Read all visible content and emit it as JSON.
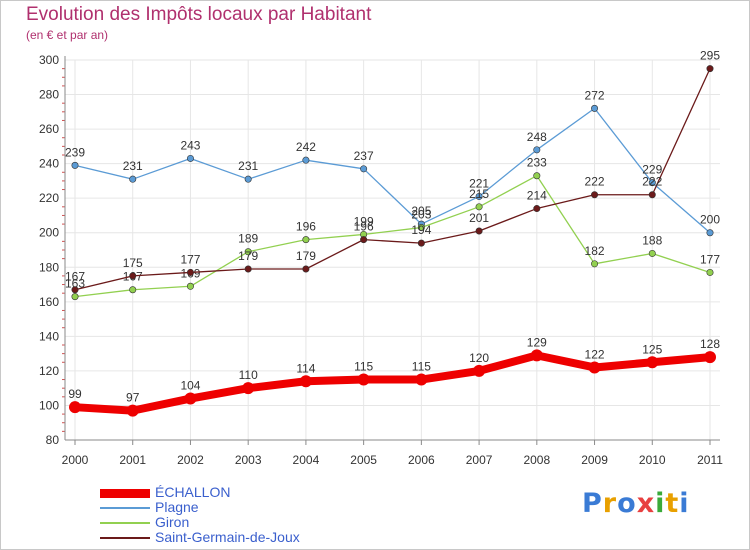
{
  "header": {
    "title": "Evolution des Impôts locaux par Habitant",
    "subtitle": "(en € et par an)"
  },
  "logo": {
    "text": "Proxiti",
    "letter_colors": [
      "#3a7bd5",
      "#e8a000",
      "#3a7bd5",
      "#e84040",
      "#3aaa3a",
      "#e8a000",
      "#3a7bd5"
    ]
  },
  "colors": {
    "grid": "#e6e6e6",
    "axis": "#8a8a8a",
    "title": "#b0306e",
    "legend_text": "#3a5fcd"
  },
  "chart_data": {
    "type": "line",
    "title": "Evolution des Impôts locaux par Habitant",
    "subtitle": "(en € et par an)",
    "xlabel": "",
    "ylabel": "",
    "categories": [
      "2000",
      "2001",
      "2002",
      "2003",
      "2004",
      "2005",
      "2006",
      "2007",
      "2008",
      "2009",
      "2010",
      "2011"
    ],
    "ylim": [
      80,
      300
    ],
    "yticks": [
      80,
      100,
      120,
      140,
      160,
      180,
      200,
      220,
      240,
      260,
      280,
      300
    ],
    "grid": true,
    "legend_position": "bottom-left",
    "series": [
      {
        "name": "ÉCHALLON",
        "color": "#ee0000",
        "emphasis": true,
        "values": [
          99,
          97,
          104,
          110,
          114,
          115,
          115,
          120,
          129,
          122,
          125,
          128
        ]
      },
      {
        "name": "Plagne",
        "color": "#5b9bd5",
        "emphasis": false,
        "values": [
          239,
          231,
          243,
          231,
          242,
          237,
          205,
          221,
          248,
          272,
          229,
          200
        ]
      },
      {
        "name": "Giron",
        "color": "#92d050",
        "emphasis": false,
        "values": [
          163,
          167,
          169,
          189,
          196,
          199,
          203,
          215,
          233,
          182,
          188,
          177
        ]
      },
      {
        "name": "Saint-Germain-de-Joux",
        "color": "#6b1a1a",
        "emphasis": false,
        "values": [
          167,
          175,
          177,
          179,
          179,
          196,
          194,
          201,
          214,
          222,
          222,
          295
        ]
      }
    ]
  }
}
